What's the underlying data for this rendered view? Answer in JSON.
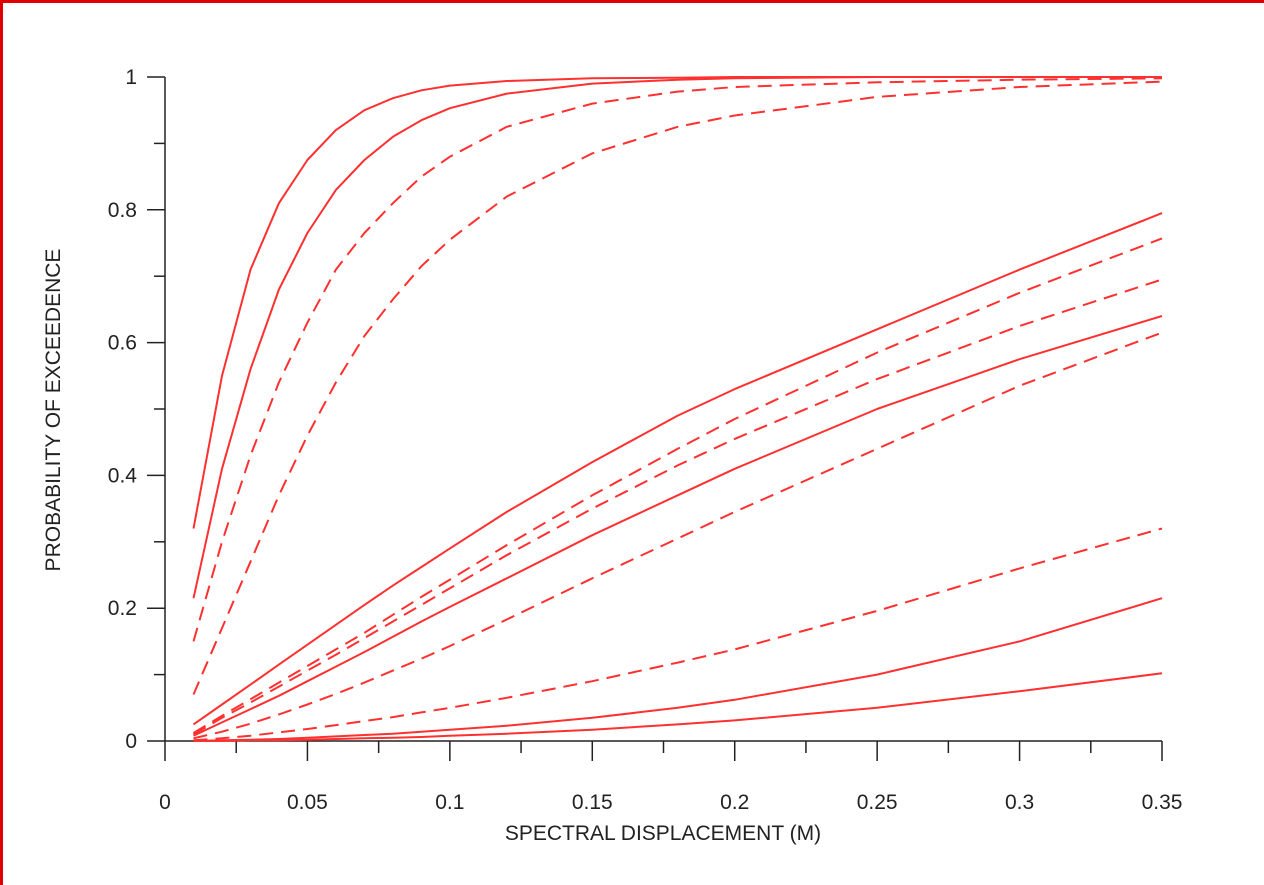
{
  "chart_data": {
    "type": "line",
    "xlabel": "SPECTRAL DISPLACEMENT (M)",
    "ylabel": "PROBABILITY OF EXCEEDENCE",
    "xlim": [
      0,
      0.35
    ],
    "ylim": [
      0,
      1
    ],
    "x_ticks": [
      "0",
      "0.05",
      "0.1",
      "0.15",
      "0.2",
      "0.25",
      "0.3",
      "0.35"
    ],
    "y_ticks": [
      "0",
      "0.2",
      "0.4",
      "0.6",
      "0.8",
      "1"
    ],
    "grid": false,
    "legend": "none",
    "line_color": "#ff3030",
    "x": [
      0.01,
      0.02,
      0.03,
      0.04,
      0.05,
      0.06,
      0.07,
      0.08,
      0.09,
      0.1,
      0.12,
      0.15,
      0.18,
      0.2,
      0.25,
      0.3,
      0.35
    ],
    "series": [
      {
        "style": "solid",
        "values": [
          0.32,
          0.55,
          0.71,
          0.81,
          0.875,
          0.92,
          0.95,
          0.968,
          0.98,
          0.987,
          0.994,
          0.998,
          0.999,
          1.0,
          1.0,
          1.0,
          1.0
        ]
      },
      {
        "style": "solid",
        "values": [
          0.215,
          0.41,
          0.56,
          0.68,
          0.765,
          0.83,
          0.875,
          0.91,
          0.935,
          0.953,
          0.975,
          0.99,
          0.996,
          0.998,
          1.0,
          1.0,
          1.0
        ]
      },
      {
        "style": "dashed",
        "values": [
          0.15,
          0.3,
          0.43,
          0.54,
          0.63,
          0.71,
          0.765,
          0.81,
          0.85,
          0.88,
          0.925,
          0.96,
          0.978,
          0.985,
          0.992,
          0.996,
          0.998
        ]
      },
      {
        "style": "dashed",
        "values": [
          0.07,
          0.17,
          0.27,
          0.37,
          0.46,
          0.54,
          0.61,
          0.665,
          0.715,
          0.755,
          0.82,
          0.885,
          0.925,
          0.942,
          0.97,
          0.985,
          0.993
        ]
      },
      {
        "style": "solid",
        "values": [
          0.025,
          0.055,
          0.085,
          0.115,
          0.145,
          0.175,
          0.205,
          0.234,
          0.262,
          0.29,
          0.345,
          0.42,
          0.49,
          0.53,
          0.62,
          0.71,
          0.795
        ]
      },
      {
        "style": "dashed",
        "values": [
          0.012,
          0.038,
          0.063,
          0.088,
          0.113,
          0.138,
          0.163,
          0.19,
          0.217,
          0.243,
          0.295,
          0.37,
          0.44,
          0.485,
          0.585,
          0.675,
          0.757
        ]
      },
      {
        "style": "dashed",
        "values": [
          0.01,
          0.035,
          0.058,
          0.082,
          0.106,
          0.13,
          0.155,
          0.18,
          0.205,
          0.23,
          0.28,
          0.35,
          0.415,
          0.455,
          0.545,
          0.625,
          0.695
        ]
      },
      {
        "style": "solid",
        "values": [
          0.008,
          0.028,
          0.048,
          0.068,
          0.09,
          0.112,
          0.134,
          0.157,
          0.18,
          0.202,
          0.245,
          0.31,
          0.37,
          0.41,
          0.5,
          0.575,
          0.64
        ]
      },
      {
        "style": "dashed",
        "values": [
          0.004,
          0.014,
          0.026,
          0.04,
          0.055,
          0.071,
          0.088,
          0.106,
          0.124,
          0.143,
          0.183,
          0.245,
          0.305,
          0.345,
          0.44,
          0.535,
          0.615
        ]
      },
      {
        "style": "dashed",
        "values": [
          0.001,
          0.004,
          0.008,
          0.013,
          0.018,
          0.024,
          0.03,
          0.036,
          0.043,
          0.05,
          0.065,
          0.09,
          0.118,
          0.138,
          0.196,
          0.26,
          0.32
        ]
      },
      {
        "style": "solid",
        "values": [
          0.0,
          0.001,
          0.002,
          0.003,
          0.005,
          0.007,
          0.009,
          0.011,
          0.014,
          0.017,
          0.023,
          0.035,
          0.05,
          0.062,
          0.1,
          0.15,
          0.215
        ]
      },
      {
        "style": "solid",
        "values": [
          0.0,
          0.0,
          0.001,
          0.001,
          0.002,
          0.003,
          0.004,
          0.005,
          0.006,
          0.008,
          0.011,
          0.017,
          0.025,
          0.031,
          0.05,
          0.075,
          0.102
        ]
      }
    ]
  }
}
